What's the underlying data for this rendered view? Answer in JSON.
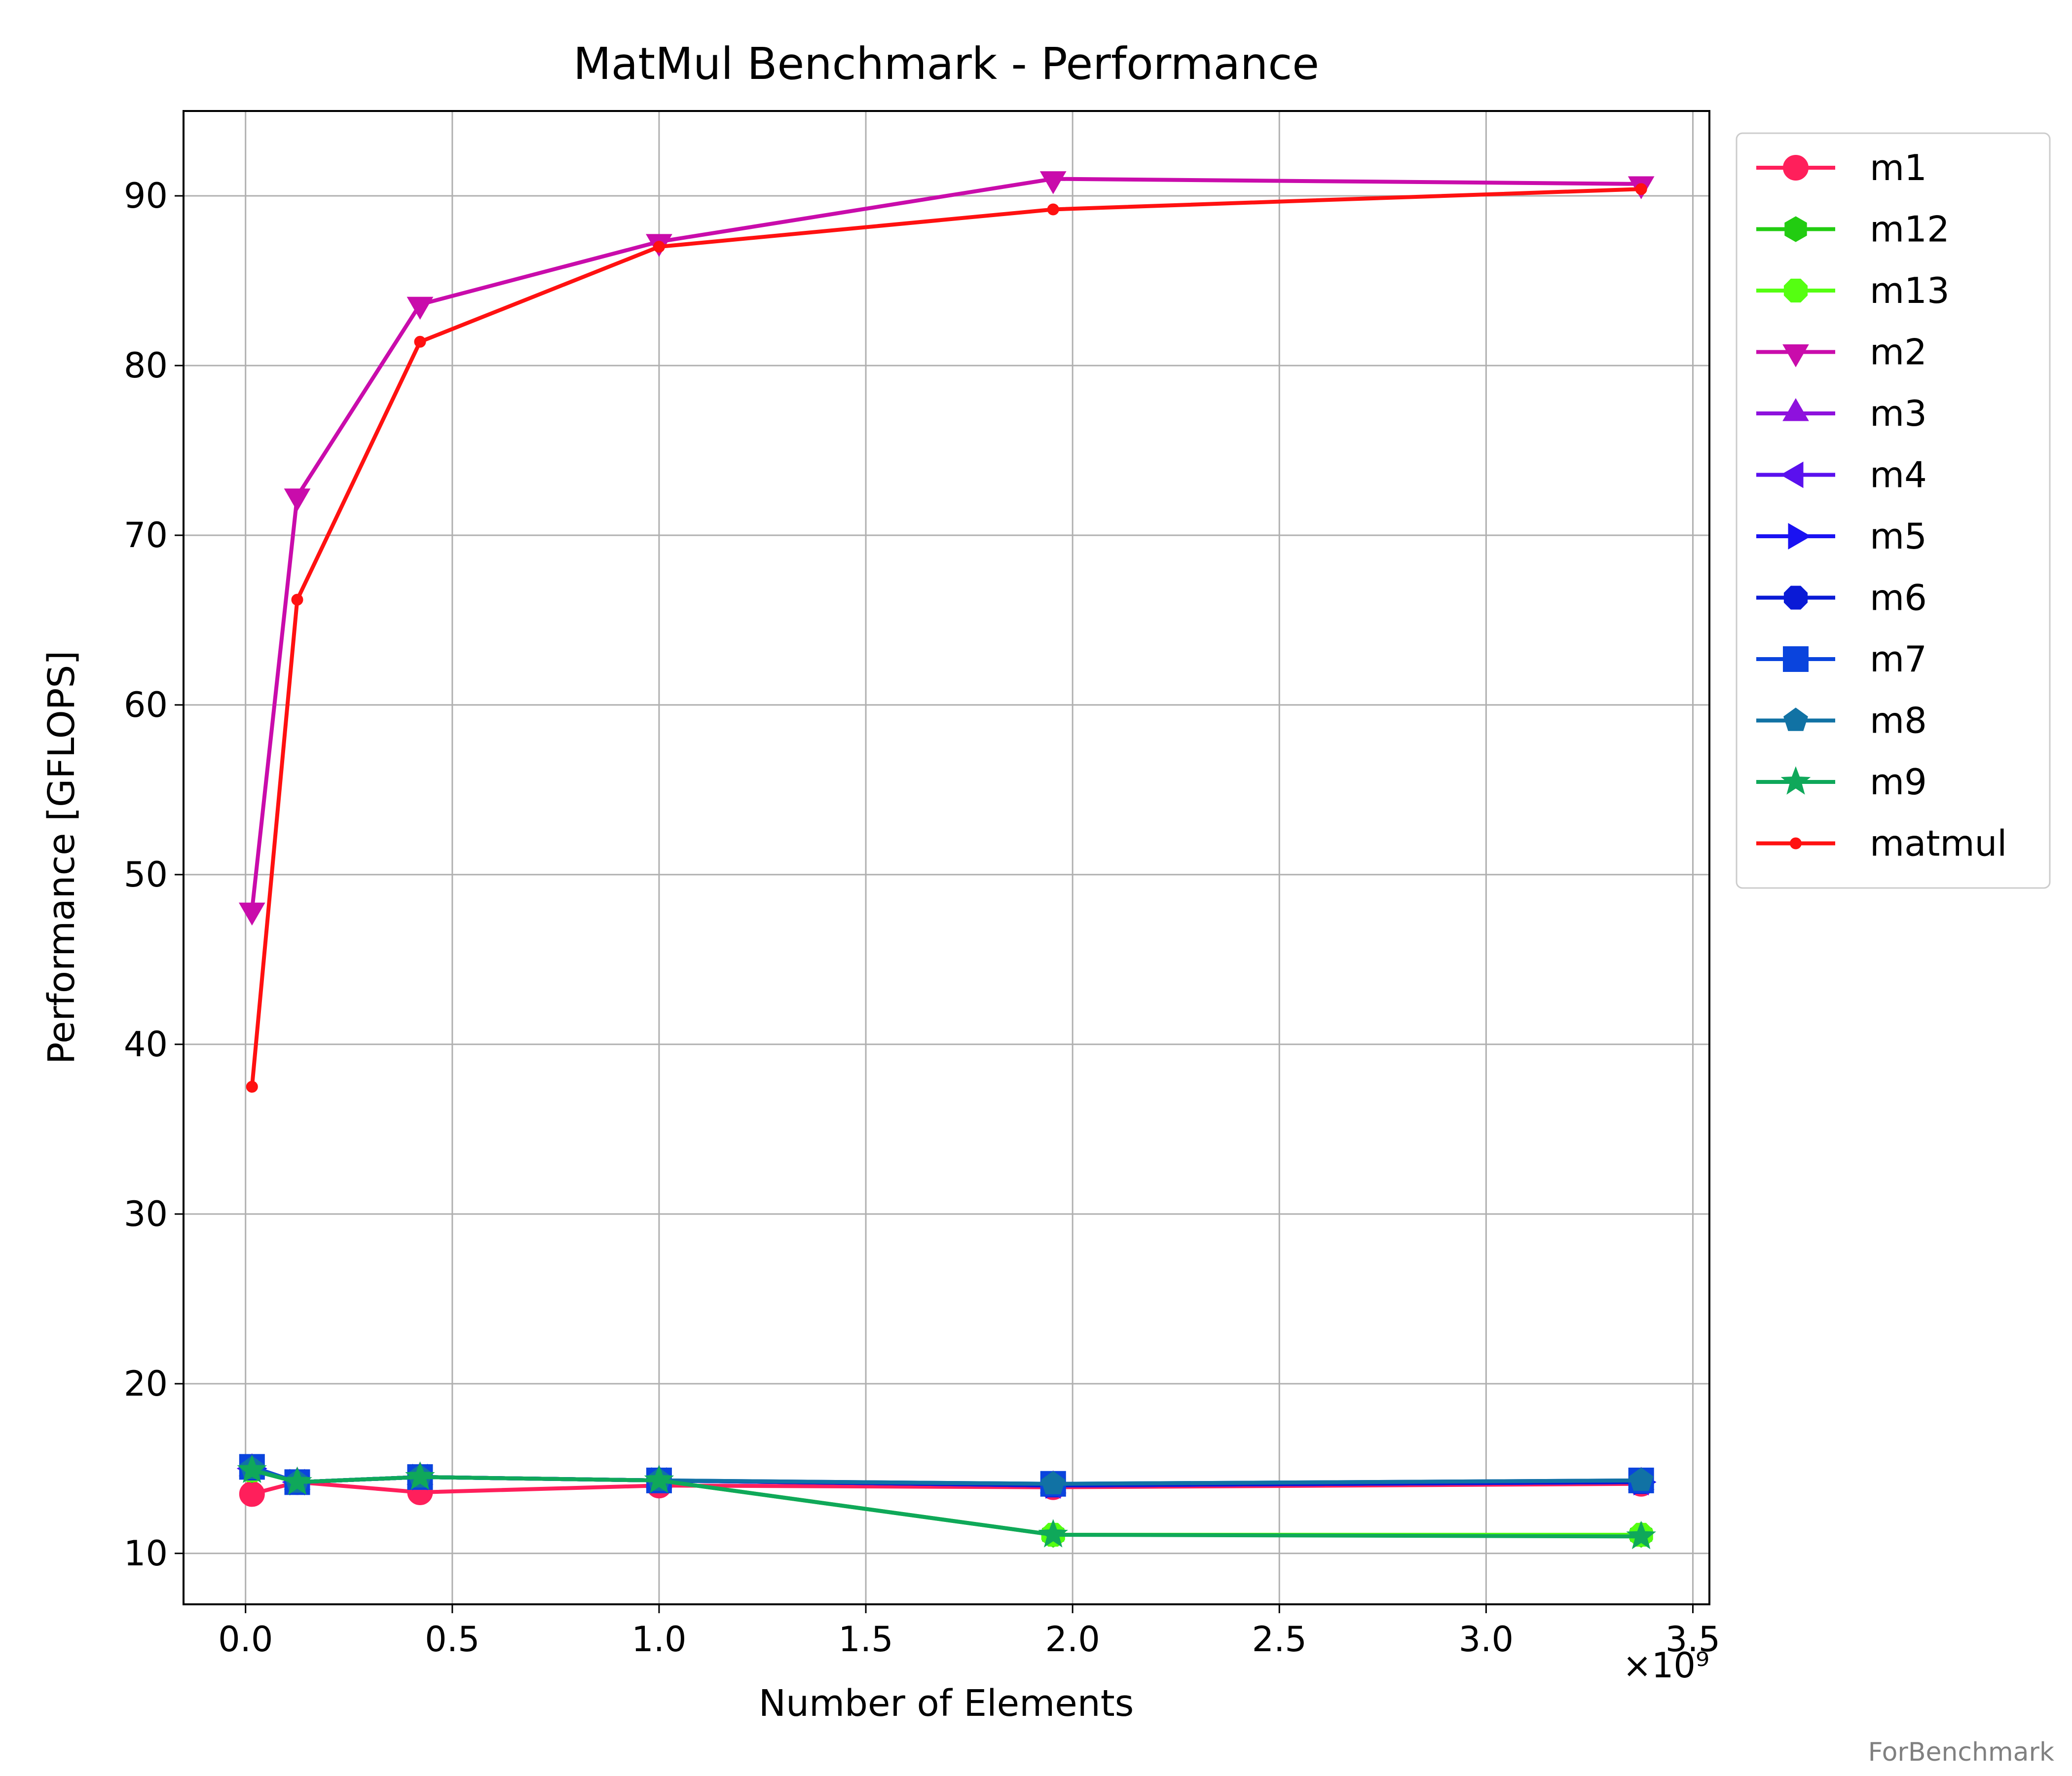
{
  "watermark": "ForBenchmark",
  "chart_data": {
    "type": "line",
    "title": "MatMul Benchmark - Performance",
    "xlabel": "Number of Elements",
    "ylabel": "Performance [GFLOPS]",
    "x_offset_label": "×10⁹",
    "xlim": [
      -0.15,
      3.54
    ],
    "ylim": [
      7,
      95
    ],
    "x_ticks": [
      0.0,
      0.5,
      1.0,
      1.5,
      2.0,
      2.5,
      3.0,
      3.5
    ],
    "x_tick_labels": [
      "0.0",
      "0.5",
      "1.0",
      "1.5",
      "2.0",
      "2.5",
      "3.0",
      "3.5"
    ],
    "y_ticks": [
      10,
      20,
      30,
      40,
      50,
      60,
      70,
      80,
      90
    ],
    "y_tick_labels": [
      "10",
      "20",
      "30",
      "40",
      "50",
      "60",
      "70",
      "80",
      "90"
    ],
    "grid": true,
    "legend_position": "outside-right-top",
    "x": [
      0.0156,
      0.125,
      0.422,
      1.0,
      1.953,
      3.375
    ],
    "series": [
      {
        "name": "m1",
        "color": "#ff1f5b",
        "marker": "circle",
        "values": [
          13.5,
          14.2,
          13.6,
          14.0,
          13.9,
          14.1
        ]
      },
      {
        "name": "m12",
        "color": "#22cc11",
        "marker": "hexagon",
        "values": [
          14.9,
          14.2,
          14.5,
          14.3,
          11.1,
          11.1
        ]
      },
      {
        "name": "m13",
        "color": "#55ff11",
        "marker": "octagon",
        "values": [
          14.9,
          14.2,
          14.5,
          14.3,
          11.1,
          11.1
        ]
      },
      {
        "name": "m2",
        "color": "#c90cab",
        "marker": "triangle-down",
        "values": [
          47.9,
          72.3,
          83.6,
          87.3,
          91.0,
          90.7
        ]
      },
      {
        "name": "m3",
        "color": "#8e11dd",
        "marker": "triangle-up",
        "values": [
          15.0,
          14.2,
          14.5,
          14.3,
          14.0,
          14.2
        ]
      },
      {
        "name": "m4",
        "color": "#5a10ee",
        "marker": "triangle-left",
        "values": [
          15.0,
          14.2,
          14.5,
          14.3,
          14.0,
          14.2
        ]
      },
      {
        "name": "m5",
        "color": "#1a12f2",
        "marker": "triangle-right",
        "values": [
          15.0,
          14.2,
          14.5,
          14.3,
          14.0,
          14.2
        ]
      },
      {
        "name": "m6",
        "color": "#0a1ad6",
        "marker": "octagon",
        "values": [
          15.0,
          14.2,
          14.5,
          14.3,
          14.0,
          14.2
        ]
      },
      {
        "name": "m7",
        "color": "#0a44dd",
        "marker": "square",
        "values": [
          15.1,
          14.2,
          14.5,
          14.3,
          14.1,
          14.3
        ]
      },
      {
        "name": "m8",
        "color": "#1172a4",
        "marker": "pentagon",
        "values": [
          15.0,
          14.2,
          14.5,
          14.3,
          14.1,
          14.3
        ]
      },
      {
        "name": "m9",
        "color": "#0fa85a",
        "marker": "star",
        "values": [
          14.9,
          14.2,
          14.5,
          14.3,
          11.1,
          11.0
        ]
      },
      {
        "name": "matmul",
        "color": "#ff1111",
        "marker": "point",
        "values": [
          37.5,
          66.2,
          81.4,
          87.0,
          89.2,
          90.4
        ]
      }
    ]
  }
}
